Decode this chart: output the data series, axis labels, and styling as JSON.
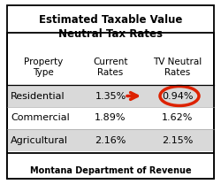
{
  "title_line1": "Estimated Taxable Value",
  "title_line2": "Neutral Tax Rates",
  "col_headers": [
    "Property\nType",
    "Current\nRates",
    "TV Neutral\nRates"
  ],
  "rows": [
    [
      "Residential",
      "1.35%",
      "0.94%"
    ],
    [
      "Commercial",
      "1.89%",
      "1.62%"
    ],
    [
      "Agricultural",
      "2.16%",
      "2.15%"
    ]
  ],
  "row_shading": [
    true,
    false,
    true
  ],
  "shading_color": "#d9d9d9",
  "arrow_color": "#dd2200",
  "ellipse_color": "#dd2200",
  "footer": "Montana Department of Revenue",
  "bg_color": "#ffffff",
  "border_color": "#000000",
  "title_fontsize": 8.5,
  "header_fontsize": 7.5,
  "cell_fontsize": 8.0,
  "footer_fontsize": 7.0
}
